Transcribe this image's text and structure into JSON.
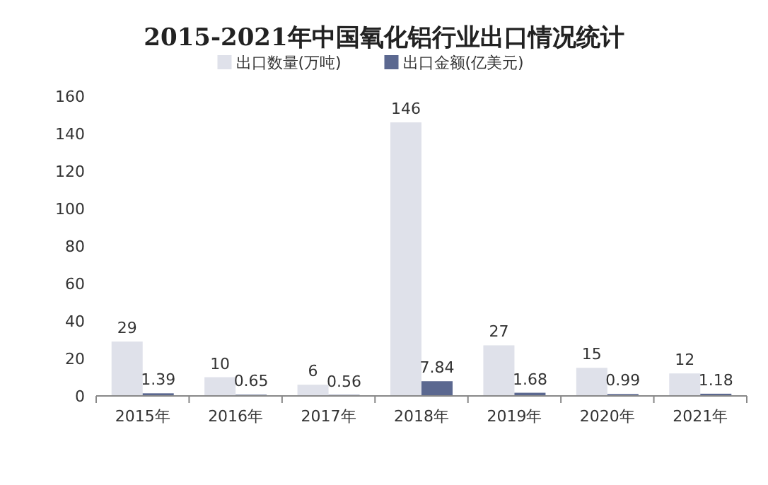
{
  "chart_data": {
    "type": "bar",
    "title": "2015-2021年中国氧化铝行业出口情况统计",
    "categories": [
      "2015年",
      "2016年",
      "2017年",
      "2018年",
      "2019年",
      "2020年",
      "2021年"
    ],
    "series": [
      {
        "name": "出口数量(万吨)",
        "color": "#dfe1ea",
        "values": [
          29,
          10,
          6,
          146,
          27,
          15,
          12
        ]
      },
      {
        "name": "出口金额(亿美元)",
        "color": "#5b6890",
        "values": [
          1.39,
          0.65,
          0.56,
          7.84,
          1.68,
          0.99,
          1.18
        ]
      }
    ],
    "ylim": [
      0,
      160
    ],
    "yticks": [
      0,
      20,
      40,
      60,
      80,
      100,
      120,
      140,
      160
    ],
    "data_labels": true,
    "legend": "top"
  }
}
